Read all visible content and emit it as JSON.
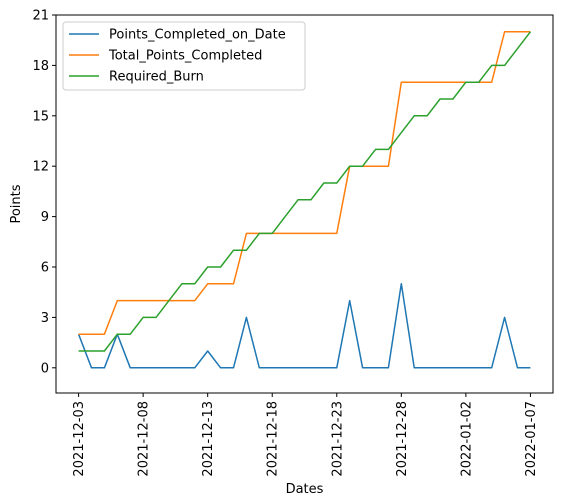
{
  "chart_data": {
    "type": "line",
    "xlabel": "Dates",
    "ylabel": "Points",
    "x": [
      "2021-12-03",
      "2021-12-04",
      "2021-12-05",
      "2021-12-06",
      "2021-12-07",
      "2021-12-08",
      "2021-12-09",
      "2021-12-10",
      "2021-12-11",
      "2021-12-12",
      "2021-12-13",
      "2021-12-14",
      "2021-12-15",
      "2021-12-16",
      "2021-12-17",
      "2021-12-18",
      "2021-12-19",
      "2021-12-20",
      "2021-12-21",
      "2021-12-22",
      "2021-12-23",
      "2021-12-24",
      "2021-12-25",
      "2021-12-26",
      "2021-12-27",
      "2021-12-28",
      "2021-12-29",
      "2021-12-30",
      "2021-12-31",
      "2022-01-01",
      "2022-01-02",
      "2022-01-03",
      "2022-01-04",
      "2022-01-05",
      "2022-01-06",
      "2022-01-07"
    ],
    "x_ticks": [
      "2021-12-03",
      "2021-12-08",
      "2021-12-13",
      "2021-12-18",
      "2021-12-23",
      "2021-12-28",
      "2022-01-02",
      "2022-01-07"
    ],
    "y_ticks": [
      "0",
      "3",
      "6",
      "9",
      "12",
      "15",
      "18",
      "21"
    ],
    "ylim": [
      -1.5,
      21
    ],
    "grid": false,
    "legend_position": "top-left",
    "series": [
      {
        "name": "Points_Completed_on_Date",
        "color": "#1f77b4",
        "values": [
          2,
          0,
          0,
          2,
          0,
          0,
          0,
          0,
          0,
          0,
          1,
          0,
          0,
          3,
          0,
          0,
          0,
          0,
          0,
          0,
          0,
          4,
          0,
          0,
          0,
          5,
          0,
          0,
          0,
          0,
          0,
          0,
          0,
          3,
          0,
          0
        ]
      },
      {
        "name": "Total_Points_Completed",
        "color": "#ff7f0e",
        "values": [
          2,
          2,
          2,
          4,
          4,
          4,
          4,
          4,
          4,
          4,
          5,
          5,
          5,
          8,
          8,
          8,
          8,
          8,
          8,
          8,
          8,
          12,
          12,
          12,
          12,
          17,
          17,
          17,
          17,
          17,
          17,
          17,
          17,
          20,
          20,
          20
        ]
      },
      {
        "name": "Required_Burn",
        "color": "#2ca02c",
        "values": [
          1,
          1,
          1,
          2,
          2,
          3,
          3,
          4,
          5,
          5,
          6,
          6,
          7,
          7,
          8,
          8,
          9,
          10,
          10,
          11,
          11,
          12,
          12,
          13,
          13,
          14,
          15,
          15,
          16,
          16,
          17,
          17,
          18,
          18,
          19,
          20
        ]
      }
    ]
  }
}
